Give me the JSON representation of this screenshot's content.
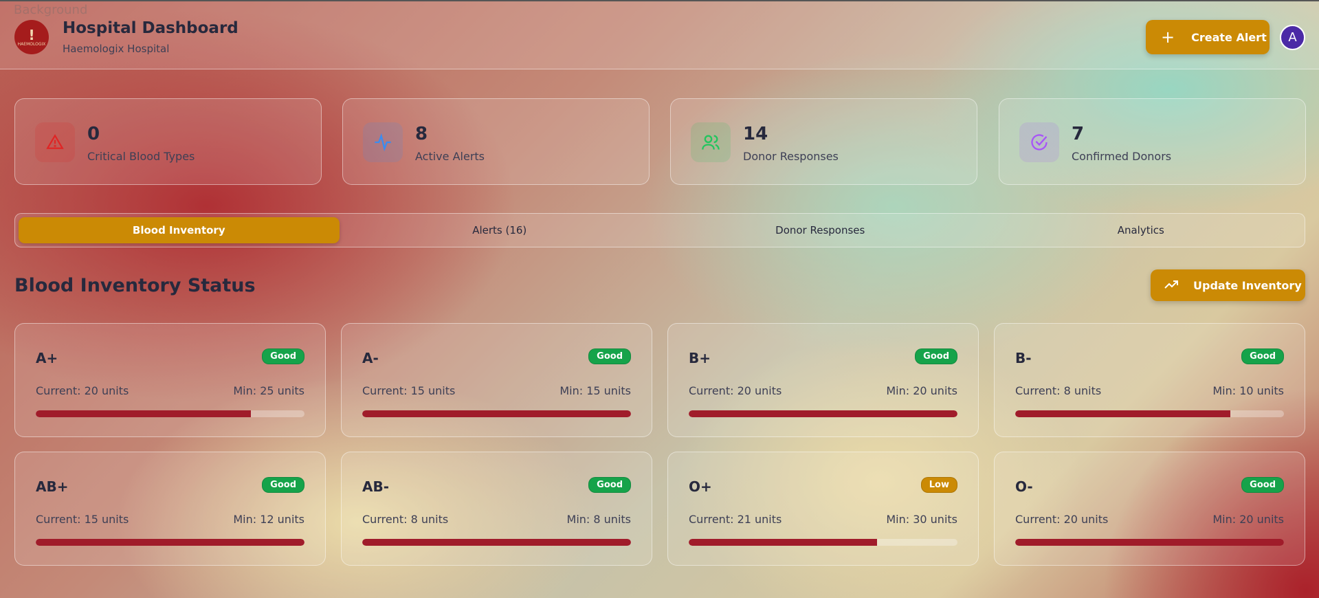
{
  "background_label": "Background",
  "header": {
    "title": "Hospital Dashboard",
    "subtitle": "Haemologix Hospital",
    "logo_text": "HAEMOLOGIX",
    "create_alert": "Create Alert",
    "avatar": "A"
  },
  "stats": [
    {
      "value": "0",
      "label": "Critical Blood Types",
      "icon": "alert-triangle-icon",
      "color": "#e02424"
    },
    {
      "value": "8",
      "label": "Active Alerts",
      "icon": "activity-icon",
      "color": "#3b8cf0"
    },
    {
      "value": "14",
      "label": "Donor Responses",
      "icon": "users-icon",
      "color": "#22c55e"
    },
    {
      "value": "7",
      "label": "Confirmed Donors",
      "icon": "check-circle-icon",
      "color": "#a855f7"
    }
  ],
  "tabs": [
    {
      "label": "Blood Inventory",
      "active": true
    },
    {
      "label": "Alerts (16)"
    },
    {
      "label": "Donor Responses"
    },
    {
      "label": "Analytics"
    }
  ],
  "section": {
    "title": "Blood Inventory Status",
    "update_button": "Update Inventory"
  },
  "inventory": [
    {
      "type": "A+",
      "status": "Good",
      "current": "Current: 20 units",
      "min": "Min: 25 units",
      "level": 0.8
    },
    {
      "type": "A-",
      "status": "Good",
      "current": "Current: 15 units",
      "min": "Min: 15 units",
      "level": 1
    },
    {
      "type": "B+",
      "status": "Good",
      "current": "Current: 20 units",
      "min": "Min: 20 units",
      "level": 1
    },
    {
      "type": "B-",
      "status": "Good",
      "current": "Current: 8 units",
      "min": "Min: 10 units",
      "level": 0.8
    },
    {
      "type": "AB+",
      "status": "Good",
      "current": "Current: 15 units",
      "min": "Min: 12 units",
      "level": 1
    },
    {
      "type": "AB-",
      "status": "Good",
      "current": "Current: 8 units",
      "min": "Min: 8 units",
      "level": 1
    },
    {
      "type": "O+",
      "status": "Low",
      "current": "Current: 21 units",
      "min": "Min: 30 units",
      "level": 0.7
    },
    {
      "type": "O-",
      "status": "Good",
      "current": "Current: 20 units",
      "min": "Min: 20 units",
      "level": 1
    }
  ],
  "colors": {
    "accent": "#cb8a05",
    "good": "#16a34a",
    "low": "#cb8a05",
    "bar": "#a01c2a"
  }
}
